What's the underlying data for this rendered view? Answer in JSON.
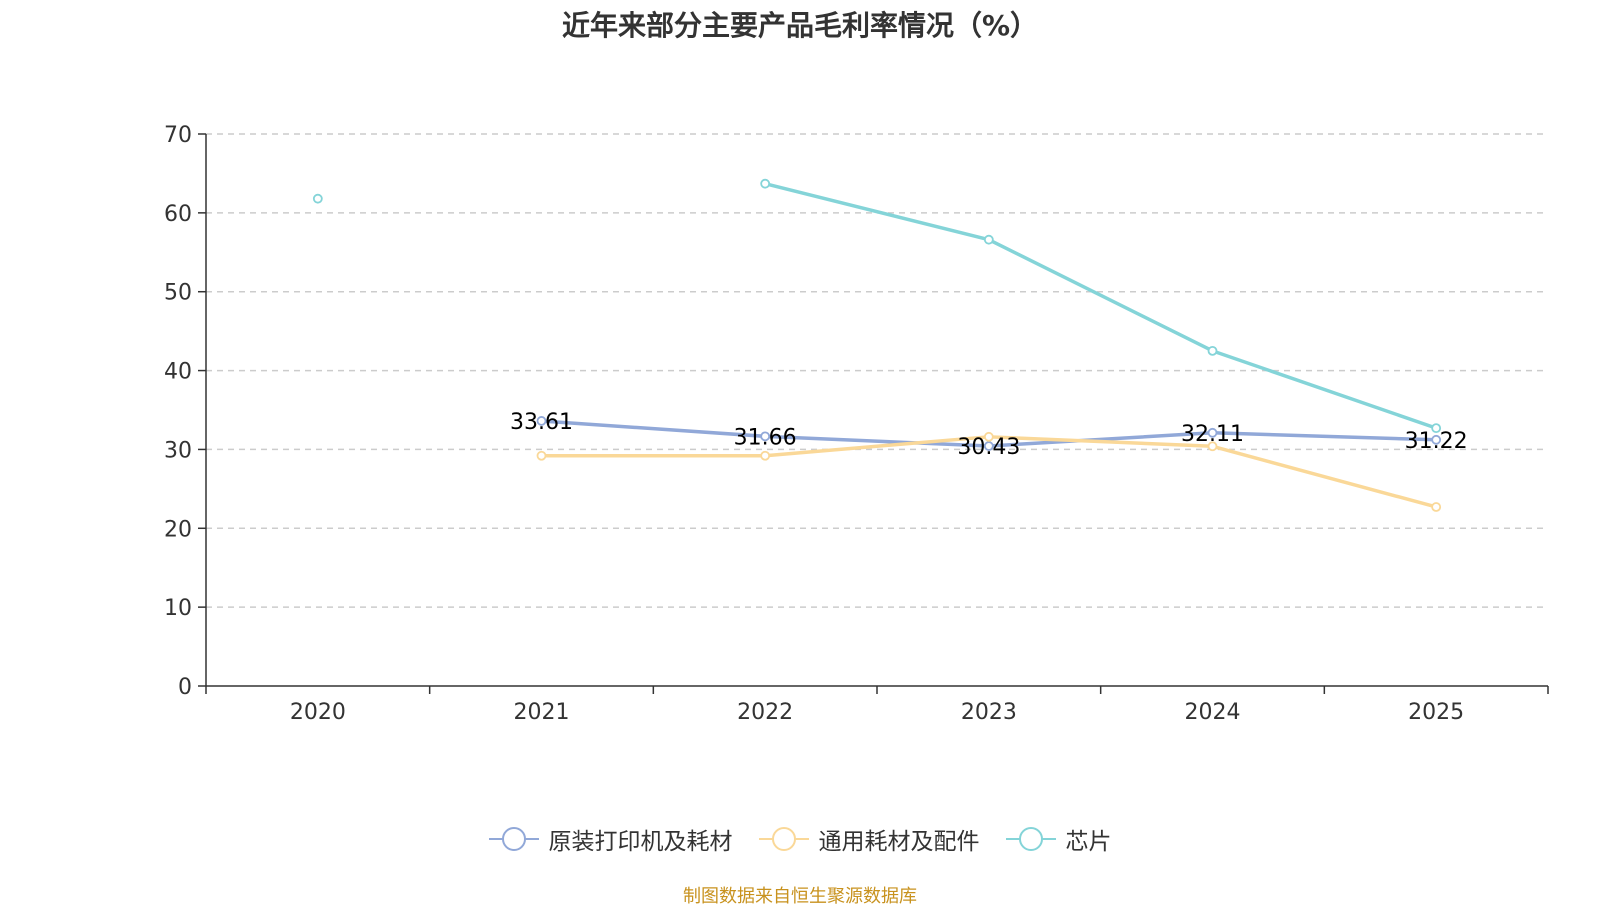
{
  "chart_data": {
    "type": "line",
    "title": "近年来部分主要产品毛利率情况（%）",
    "categories": [
      "2020",
      "2021",
      "2022",
      "2023",
      "2024",
      "2025"
    ],
    "ylim": [
      0,
      70
    ],
    "yticks": [
      0,
      10,
      20,
      30,
      40,
      50,
      60,
      70
    ],
    "grid": true,
    "legend_position": "bottom",
    "series": [
      {
        "name": "原装打印机及耗材",
        "color": "#91a8d8",
        "values": [
          null,
          33.61,
          31.66,
          30.43,
          32.11,
          31.22
        ],
        "labels": [
          null,
          "33.61",
          "31.66",
          "30.43",
          "32.11",
          "31.22"
        ]
      },
      {
        "name": "通用耗材及配件",
        "color": "#fad898",
        "values": [
          null,
          29.2,
          29.2,
          31.6,
          30.4,
          22.7
        ],
        "labels": [
          null,
          null,
          null,
          null,
          null,
          null
        ]
      },
      {
        "name": "芯片",
        "color": "#84d4d8",
        "values": [
          61.8,
          null,
          63.7,
          56.6,
          42.5,
          32.7
        ],
        "labels": [
          null,
          null,
          null,
          null,
          null,
          null
        ]
      }
    ],
    "source": "制图数据来自恒生聚源数据库"
  }
}
